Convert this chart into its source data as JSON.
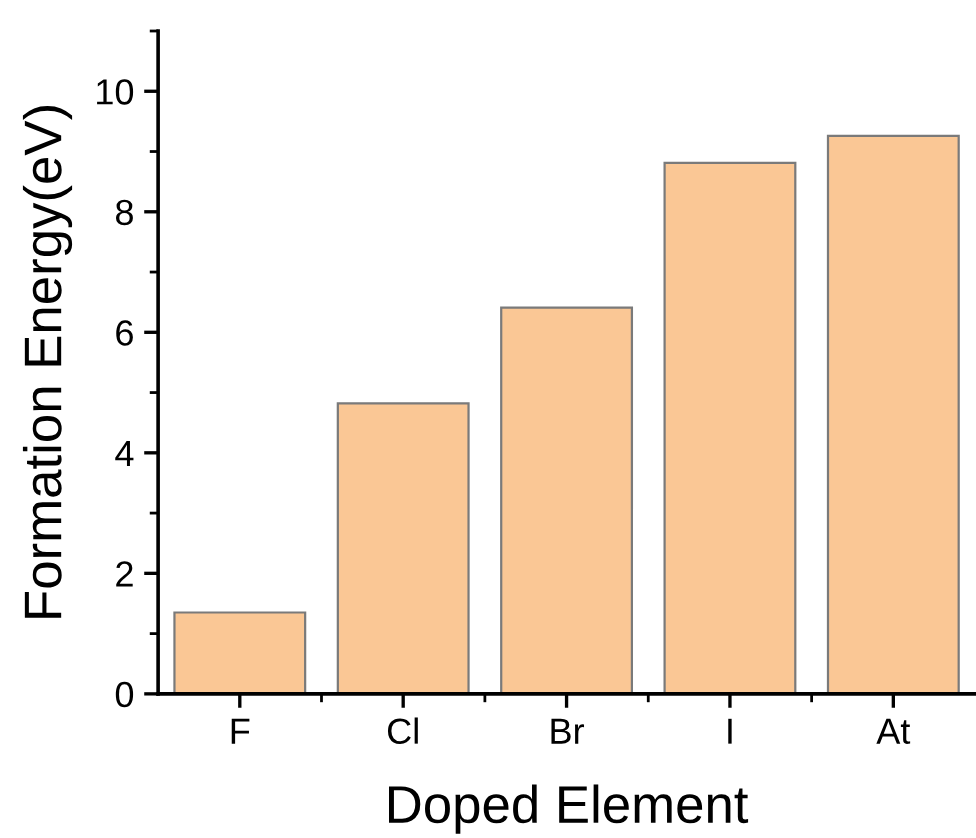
{
  "chart_data": {
    "type": "bar",
    "xlabel": "Doped Element",
    "ylabel": "Formation Energy(eV)",
    "categories": [
      "F",
      "Cl",
      "Br",
      "I",
      "At"
    ],
    "values": [
      1.35,
      4.82,
      6.41,
      8.81,
      9.26
    ],
    "color": "#fac795",
    "ylim": [
      0,
      11
    ],
    "yticks": [
      0,
      2,
      4,
      6,
      8,
      10
    ],
    "grid": false,
    "legend": false
  }
}
